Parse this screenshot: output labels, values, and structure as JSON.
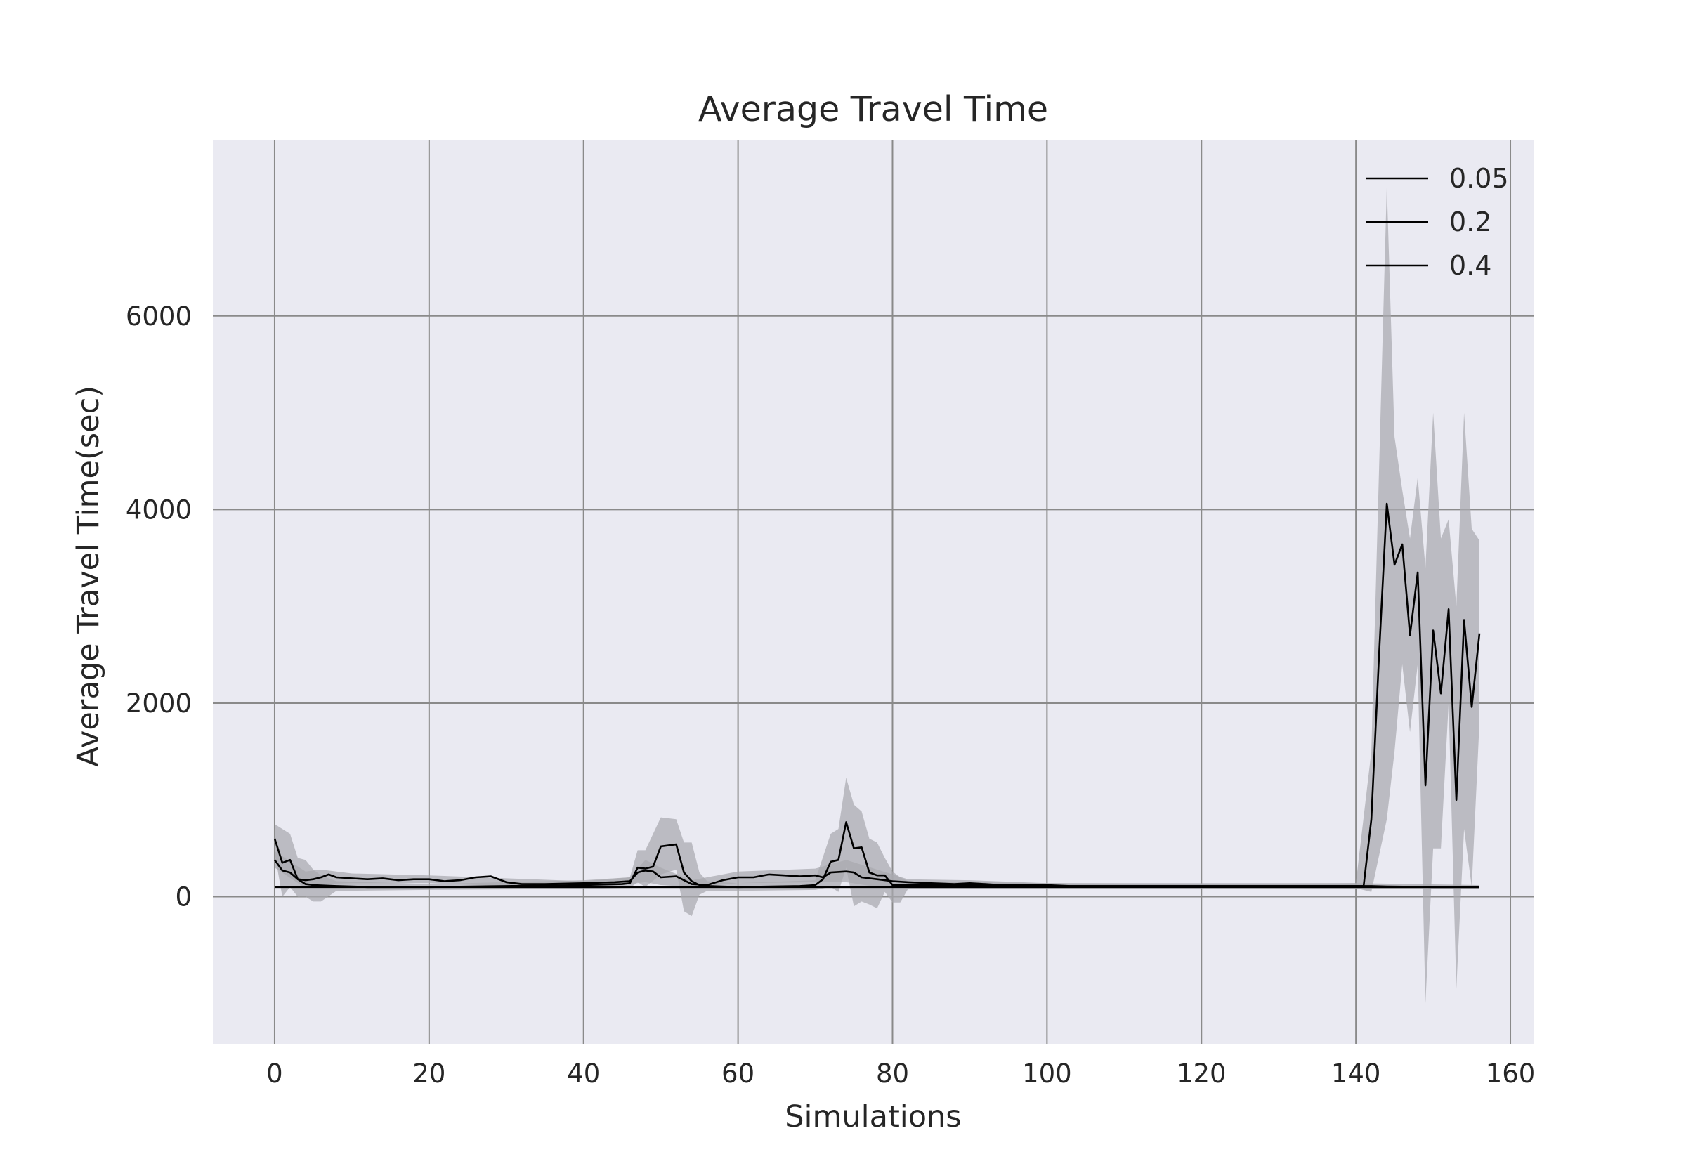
{
  "chart_data": {
    "type": "line",
    "title": "Average Travel Time",
    "xlabel": "Simulations",
    "ylabel": "Average Travel Time(sec)",
    "xlim": [
      -8,
      163
    ],
    "ylim": [
      -1520,
      7820
    ],
    "xticks": [
      0,
      20,
      40,
      60,
      80,
      100,
      120,
      140,
      160
    ],
    "yticks": [
      0,
      2000,
      4000,
      6000
    ],
    "grid": true,
    "legend_position": "top-right",
    "line_color": "#000000",
    "band_color": "#a9a9ae",
    "background_color": "#eaeaf2",
    "grid_color": "#8a8a8a",
    "series": [
      {
        "name": "0.05",
        "points": [
          [
            0,
            100
          ],
          [
            10,
            100
          ],
          [
            20,
            100
          ],
          [
            30,
            100
          ],
          [
            40,
            100
          ],
          [
            50,
            100
          ],
          [
            60,
            100
          ],
          [
            70,
            100
          ],
          [
            80,
            100
          ],
          [
            90,
            100
          ],
          [
            100,
            100
          ],
          [
            110,
            100
          ],
          [
            120,
            100
          ],
          [
            130,
            100
          ],
          [
            140,
            100
          ],
          [
            150,
            100
          ],
          [
            156,
            100
          ]
        ],
        "band": [
          [
            0,
            100,
            100
          ],
          [
            20,
            90,
            110
          ],
          [
            40,
            90,
            110
          ],
          [
            60,
            90,
            110
          ],
          [
            80,
            90,
            110
          ],
          [
            100,
            90,
            110
          ],
          [
            120,
            90,
            110
          ],
          [
            140,
            85,
            115
          ],
          [
            156,
            85,
            115
          ]
        ]
      },
      {
        "name": "0.2",
        "points": [
          [
            0,
            380
          ],
          [
            1,
            270
          ],
          [
            2,
            250
          ],
          [
            3,
            180
          ],
          [
            4,
            170
          ],
          [
            5,
            180
          ],
          [
            6,
            200
          ],
          [
            7,
            230
          ],
          [
            8,
            200
          ],
          [
            10,
            190
          ],
          [
            12,
            180
          ],
          [
            14,
            190
          ],
          [
            16,
            170
          ],
          [
            18,
            180
          ],
          [
            20,
            180
          ],
          [
            22,
            160
          ],
          [
            24,
            170
          ],
          [
            26,
            200
          ],
          [
            28,
            210
          ],
          [
            30,
            150
          ],
          [
            32,
            130
          ],
          [
            35,
            130
          ],
          [
            40,
            140
          ],
          [
            44,
            150
          ],
          [
            46,
            160
          ],
          [
            47,
            250
          ],
          [
            48,
            270
          ],
          [
            49,
            260
          ],
          [
            50,
            200
          ],
          [
            52,
            210
          ],
          [
            53,
            170
          ],
          [
            54,
            130
          ],
          [
            56,
            120
          ],
          [
            58,
            170
          ],
          [
            60,
            200
          ],
          [
            62,
            200
          ],
          [
            64,
            230
          ],
          [
            66,
            220
          ],
          [
            68,
            210
          ],
          [
            70,
            220
          ],
          [
            71,
            200
          ],
          [
            72,
            250
          ],
          [
            74,
            260
          ],
          [
            75,
            250
          ],
          [
            76,
            200
          ],
          [
            78,
            180
          ],
          [
            80,
            160
          ],
          [
            82,
            150
          ],
          [
            85,
            140
          ],
          [
            88,
            130
          ],
          [
            90,
            140
          ],
          [
            92,
            130
          ],
          [
            94,
            120
          ],
          [
            100,
            120
          ],
          [
            103,
            110
          ],
          [
            110,
            110
          ],
          [
            115,
            110
          ],
          [
            120,
            110
          ],
          [
            130,
            110
          ],
          [
            140,
            110
          ],
          [
            141,
            110
          ],
          [
            142,
            800
          ],
          [
            143,
            2500
          ],
          [
            144,
            4060
          ],
          [
            145,
            3430
          ],
          [
            146,
            3640
          ],
          [
            147,
            2700
          ],
          [
            148,
            3350
          ],
          [
            149,
            1150
          ],
          [
            150,
            2750
          ],
          [
            151,
            2100
          ],
          [
            152,
            2970
          ],
          [
            153,
            1000
          ],
          [
            154,
            2860
          ],
          [
            155,
            1960
          ],
          [
            156,
            2720
          ]
        ],
        "band": [
          [
            0,
            300,
            470
          ],
          [
            4,
            90,
            260
          ],
          [
            6,
            130,
            280
          ],
          [
            10,
            140,
            240
          ],
          [
            20,
            140,
            220
          ],
          [
            30,
            110,
            190
          ],
          [
            40,
            120,
            160
          ],
          [
            46,
            130,
            200
          ],
          [
            48,
            150,
            380
          ],
          [
            50,
            120,
            300
          ],
          [
            54,
            100,
            170
          ],
          [
            60,
            140,
            260
          ],
          [
            70,
            150,
            290
          ],
          [
            74,
            150,
            380
          ],
          [
            78,
            100,
            280
          ],
          [
            82,
            120,
            180
          ],
          [
            90,
            120,
            170
          ],
          [
            100,
            100,
            140
          ],
          [
            120,
            100,
            130
          ],
          [
            140,
            90,
            140
          ],
          [
            142,
            50,
            1500
          ],
          [
            144,
            800,
            7350
          ],
          [
            145,
            1500,
            4750
          ],
          [
            146,
            2400,
            4200
          ],
          [
            147,
            1700,
            3700
          ],
          [
            148,
            2400,
            4330
          ],
          [
            149,
            -1100,
            3400
          ],
          [
            150,
            500,
            5000
          ],
          [
            151,
            500,
            3700
          ],
          [
            152,
            2000,
            3900
          ],
          [
            153,
            -950,
            3000
          ],
          [
            154,
            700,
            5000
          ],
          [
            155,
            100,
            3800
          ],
          [
            156,
            1800,
            3680
          ]
        ]
      },
      {
        "name": "0.4",
        "points": [
          [
            0,
            600
          ],
          [
            1,
            350
          ],
          [
            2,
            380
          ],
          [
            3,
            180
          ],
          [
            4,
            130
          ],
          [
            5,
            120
          ],
          [
            8,
            110
          ],
          [
            12,
            100
          ],
          [
            20,
            100
          ],
          [
            30,
            110
          ],
          [
            40,
            120
          ],
          [
            45,
            130
          ],
          [
            46,
            140
          ],
          [
            47,
            300
          ],
          [
            48,
            290
          ],
          [
            49,
            310
          ],
          [
            50,
            520
          ],
          [
            52,
            540
          ],
          [
            53,
            250
          ],
          [
            54,
            160
          ],
          [
            55,
            120
          ],
          [
            56,
            110
          ],
          [
            60,
            100
          ],
          [
            68,
            110
          ],
          [
            70,
            120
          ],
          [
            71,
            180
          ],
          [
            72,
            360
          ],
          [
            73,
            380
          ],
          [
            74,
            770
          ],
          [
            75,
            500
          ],
          [
            76,
            510
          ],
          [
            77,
            250
          ],
          [
            78,
            220
          ],
          [
            79,
            220
          ],
          [
            80,
            120
          ],
          [
            85,
            120
          ],
          [
            90,
            120
          ],
          [
            95,
            120
          ],
          [
            100,
            110
          ],
          [
            110,
            110
          ],
          [
            120,
            110
          ],
          [
            130,
            110
          ],
          [
            140,
            110
          ],
          [
            142,
            110
          ],
          [
            144,
            105
          ],
          [
            150,
            100
          ],
          [
            156,
            100
          ]
        ],
        "band": [
          [
            0,
            450,
            750
          ],
          [
            1,
            0,
            700
          ],
          [
            2,
            100,
            650
          ],
          [
            3,
            0,
            400
          ],
          [
            4,
            0,
            380
          ],
          [
            5,
            -50,
            280
          ],
          [
            6,
            -50,
            220
          ],
          [
            8,
            60,
            160
          ],
          [
            20,
            70,
            130
          ],
          [
            40,
            80,
            170
          ],
          [
            46,
            90,
            200
          ],
          [
            47,
            150,
            480
          ],
          [
            48,
            100,
            480
          ],
          [
            50,
            230,
            820
          ],
          [
            52,
            280,
            800
          ],
          [
            53,
            -150,
            560
          ],
          [
            54,
            -200,
            560
          ],
          [
            55,
            20,
            250
          ],
          [
            56,
            60,
            160
          ],
          [
            60,
            60,
            140
          ],
          [
            70,
            70,
            170
          ],
          [
            72,
            100,
            650
          ],
          [
            73,
            50,
            700
          ],
          [
            74,
            300,
            1230
          ],
          [
            75,
            -100,
            950
          ],
          [
            76,
            -50,
            880
          ],
          [
            77,
            -80,
            600
          ],
          [
            78,
            -120,
            560
          ],
          [
            79,
            50,
            400
          ],
          [
            80,
            -60,
            260
          ],
          [
            81,
            -60,
            200
          ],
          [
            82,
            80,
            160
          ],
          [
            100,
            80,
            140
          ],
          [
            140,
            80,
            140
          ],
          [
            156,
            80,
            120
          ]
        ]
      }
    ]
  }
}
